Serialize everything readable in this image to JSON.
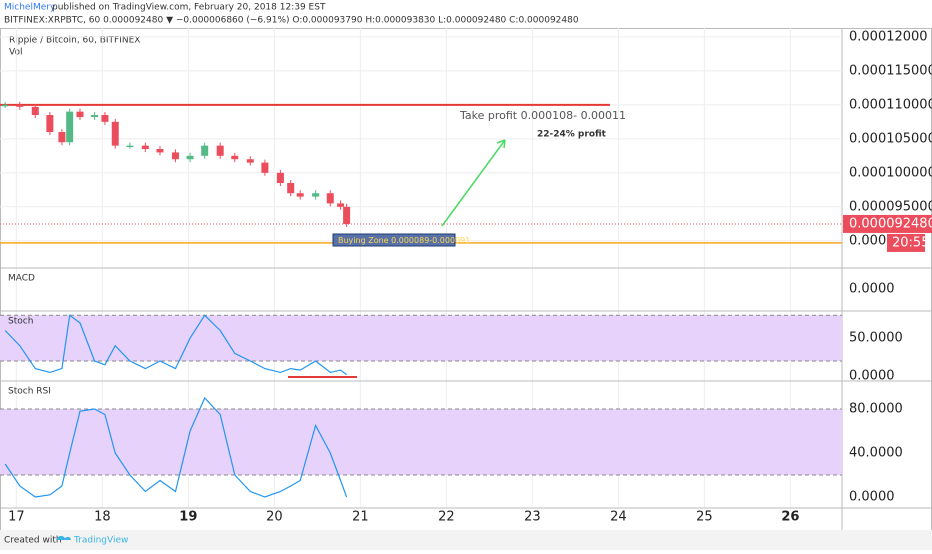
{
  "header": {
    "author": "MichelMery",
    "published": "published on TradingView.com, February 20, 2018 12:39 EST",
    "symbol_line": "BITFINEX:XRPBTC, 60  0.000092480 ▼ −0.000006860 (−6.91%) O:0.000093790 H:0.000093830 L:0.000092480 C:0.000092480"
  },
  "chart_data": {
    "type": "candlestick",
    "title": "Ripple / Bitcoin, 60, BITFINEX",
    "volume_label": "Vol",
    "x": [
      16.87,
      17.04,
      17.22,
      17.39,
      17.53,
      17.62,
      17.74,
      17.91,
      18.03,
      18.15,
      18.32,
      18.5,
      18.67,
      18.85,
      19.02,
      19.19,
      19.37,
      19.54,
      19.72,
      19.89,
      20.07,
      20.19,
      20.3,
      20.48,
      20.65,
      20.77,
      20.84
    ],
    "close": [
      0.00011,
      0.0001097,
      0.0001085,
      0.000106,
      0.0001045,
      0.000109,
      0.0001082,
      0.0001085,
      0.0001075,
      0.000104,
      0.000104,
      0.0001035,
      0.000103,
      0.000102,
      0.0001025,
      0.000104,
      0.0001025,
      0.000102,
      0.0001015,
      0.0001,
      9.85e-05,
      9.7e-05,
      9.65e-05,
      9.7e-05,
      9.55e-05,
      9.5e-05,
      9.248e-05
    ],
    "up_color": "#53b987",
    "down_color": "#eb4d5c",
    "xlim": [
      16.81,
      26.6
    ],
    "xticks": [
      17,
      18,
      19,
      20,
      21,
      22,
      23,
      24,
      25,
      26
    ],
    "ylim": [
      8.6e-05,
      0.0001213
    ],
    "yticks": [
      {
        "value": 0.00012,
        "label": "0.00012000"
      },
      {
        "value": 0.000115,
        "label": "0.000115000"
      },
      {
        "value": 0.00011,
        "label": "0.000110000"
      },
      {
        "value": 0.000105,
        "label": "0.000105000"
      },
      {
        "value": 0.0001,
        "label": "0.000100000"
      },
      {
        "value": 9.5e-05,
        "label": "0.000095000"
      },
      {
        "value": 9e-05,
        "label": "0.0000"
      }
    ],
    "resistance": 0.00011,
    "support": 8.97e-05,
    "last_price": {
      "value": 9.248e-05,
      "label": "0.000092480"
    },
    "time_label": "20:55",
    "annotations": {
      "take_profit": "Take profit 0.000108- 0.00011",
      "profit": "22-24% profit",
      "buying_zone": "Buying Zone 0.000089-0.000091"
    }
  },
  "panes": [
    {
      "title": "MACD",
      "ylim": [
        -1,
        1
      ],
      "yticks": [
        {
          "value": 0,
          "label": "0.0000"
        }
      ]
    },
    {
      "title": "Stoch",
      "ylim": [
        -5,
        83
      ],
      "band": [
        20,
        80
      ],
      "yticks": [
        {
          "value": 50,
          "label": "50.0000"
        },
        {
          "value": 0,
          "label": "0.0000"
        }
      ],
      "color": "#2196f3",
      "values": [
        60,
        40,
        10,
        5,
        10,
        80,
        70,
        20,
        15,
        40,
        20,
        10,
        20,
        10,
        50,
        80,
        60,
        30,
        20,
        10,
        5,
        10,
        8,
        20,
        5,
        8,
        2
      ]
    },
    {
      "title": "Stoch RSI",
      "ylim": [
        -10,
        103.6
      ],
      "band": [
        20,
        80
      ],
      "yticks": [
        {
          "value": 80,
          "label": "80.0000"
        },
        {
          "value": 40,
          "label": "40.0000"
        },
        {
          "value": 0,
          "label": "0.0000"
        }
      ],
      "color": "#2196f3",
      "values": [
        30,
        10,
        0,
        2,
        10,
        40,
        78,
        80,
        75,
        40,
        20,
        5,
        15,
        5,
        60,
        90,
        75,
        20,
        5,
        0,
        5,
        10,
        15,
        65,
        40,
        15,
        0
      ]
    }
  ],
  "footer": {
    "created": "Created with",
    "brand": "TradingView"
  }
}
